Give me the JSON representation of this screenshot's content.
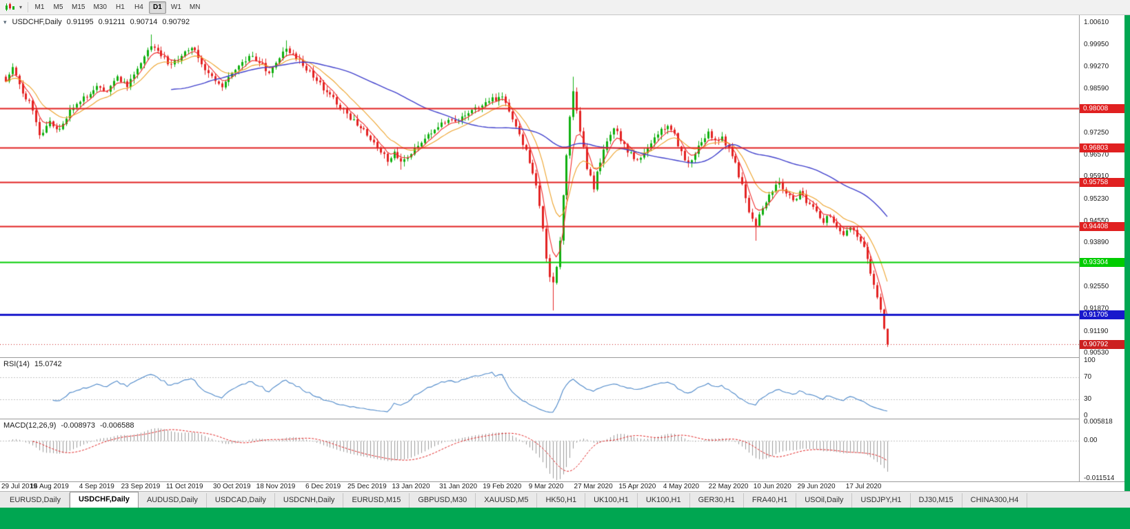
{
  "theme": {
    "workspace_bg": "#00a651",
    "toolbar_bg": "#f1f1f1",
    "pane_bg": "#ffffff"
  },
  "toolbar": {
    "timeframes": [
      "M1",
      "M5",
      "M15",
      "M30",
      "H1",
      "H4",
      "D1",
      "W1",
      "MN"
    ],
    "active_timeframe": "D1",
    "caret": "▾"
  },
  "main_chart": {
    "collapse_arrow": "▾",
    "title": "USDCHF,Daily",
    "ohlc": {
      "open": "0.91195",
      "high": "0.91211",
      "low": "0.90714",
      "close": "0.90792"
    }
  },
  "rsi_panel": {
    "label": "RSI(14)",
    "value": "15.0742"
  },
  "macd_panel": {
    "label": "MACD(12,26,9)",
    "value_main": "-0.008973",
    "value_signal": "-0.006588"
  },
  "chart_data": {
    "type": "candlestick",
    "symbol": "USDCHF",
    "timeframe": "Daily",
    "bar_count": 262,
    "y_axis": {
      "min": 0.904,
      "max": 1.0085,
      "ticks": [
        1.0061,
        0.9995,
        0.9927,
        0.9859,
        0.9791,
        0.9725,
        0.9657,
        0.9591,
        0.9523,
        0.9455,
        0.9389,
        0.9321,
        0.9255,
        0.9187,
        0.9119,
        0.9053
      ]
    },
    "x_labels": [
      "29 Jul 2019",
      "16 Aug 2019",
      "4 Sep 2019",
      "23 Sep 2019",
      "11 Oct 2019",
      "30 Oct 2019",
      "18 Nov 2019",
      "6 Dec 2019",
      "25 Dec 2019",
      "13 Jan 2020",
      "31 Jan 2020",
      "19 Feb 2020",
      "9 Mar 2020",
      "27 Mar 2020",
      "15 Apr 2020",
      "4 May 2020",
      "22 May 2020",
      "10 Jun 2020",
      "29 Jun 2020",
      "17 Jul 2020"
    ],
    "x_label_bars": [
      0,
      13,
      27,
      40,
      53,
      67,
      80,
      94,
      107,
      120,
      134,
      147,
      160,
      174,
      187,
      200,
      214,
      227,
      240,
      254
    ],
    "price_anchors": [
      [
        0,
        0.9882
      ],
      [
        2,
        0.9922
      ],
      [
        5,
        0.985
      ],
      [
        8,
        0.98
      ],
      [
        10,
        0.9712
      ],
      [
        13,
        0.9762
      ],
      [
        16,
        0.9735
      ],
      [
        19,
        0.9795
      ],
      [
        23,
        0.983
      ],
      [
        27,
        0.9872
      ],
      [
        30,
        0.9845
      ],
      [
        33,
        0.9895
      ],
      [
        36,
        0.987
      ],
      [
        40,
        0.994
      ],
      [
        43,
        0.9995
      ],
      [
        46,
        0.9962
      ],
      [
        49,
        0.9928
      ],
      [
        52,
        0.996
      ],
      [
        55,
        0.9988
      ],
      [
        58,
        0.9935
      ],
      [
        61,
        0.9898
      ],
      [
        64,
        0.9862
      ],
      [
        67,
        0.9902
      ],
      [
        70,
        0.9935
      ],
      [
        73,
        0.9962
      ],
      [
        76,
        0.9932
      ],
      [
        78,
        0.9902
      ],
      [
        80,
        0.9945
      ],
      [
        83,
        0.9985
      ],
      [
        86,
        0.9958
      ],
      [
        89,
        0.9922
      ],
      [
        92,
        0.9885
      ],
      [
        94,
        0.9862
      ],
      [
        97,
        0.983
      ],
      [
        100,
        0.9795
      ],
      [
        103,
        0.976
      ],
      [
        106,
        0.9732
      ],
      [
        109,
        0.97
      ],
      [
        111,
        0.9668
      ],
      [
        113,
        0.964
      ],
      [
        115,
        0.9668
      ],
      [
        117,
        0.963
      ],
      [
        120,
        0.9664
      ],
      [
        123,
        0.9698
      ],
      [
        126,
        0.9728
      ],
      [
        129,
        0.9755
      ],
      [
        132,
        0.977
      ],
      [
        134,
        0.9762
      ],
      [
        137,
        0.9782
      ],
      [
        140,
        0.9802
      ],
      [
        144,
        0.9828
      ],
      [
        147,
        0.9836
      ],
      [
        149,
        0.9788
      ],
      [
        151,
        0.9742
      ],
      [
        153,
        0.9694
      ],
      [
        155,
        0.964
      ],
      [
        157,
        0.956
      ],
      [
        158,
        0.95
      ],
      [
        159,
        0.943
      ],
      [
        160,
        0.934
      ],
      [
        161,
        0.928
      ],
      [
        162,
        0.9268
      ],
      [
        163,
        0.931
      ],
      [
        164,
        0.94
      ],
      [
        165,
        0.953
      ],
      [
        166,
        0.966
      ],
      [
        167,
        0.977
      ],
      [
        168,
        0.985
      ],
      [
        169,
        0.98
      ],
      [
        170,
        0.973
      ],
      [
        172,
        0.962
      ],
      [
        174,
        0.956
      ],
      [
        176,
        0.964
      ],
      [
        178,
        0.97
      ],
      [
        180,
        0.9742
      ],
      [
        182,
        0.9706
      ],
      [
        184,
        0.9668
      ],
      [
        187,
        0.964
      ],
      [
        190,
        0.9678
      ],
      [
        193,
        0.972
      ],
      [
        196,
        0.9752
      ],
      [
        198,
        0.9716
      ],
      [
        200,
        0.9668
      ],
      [
        202,
        0.963
      ],
      [
        204,
        0.9668
      ],
      [
        206,
        0.97
      ],
      [
        208,
        0.9728
      ],
      [
        210,
        0.97
      ],
      [
        212,
        0.9716
      ],
      [
        214,
        0.9674
      ],
      [
        216,
        0.963
      ],
      [
        218,
        0.9565
      ],
      [
        220,
        0.949
      ],
      [
        222,
        0.9445
      ],
      [
        224,
        0.95
      ],
      [
        227,
        0.955
      ],
      [
        229,
        0.9572
      ],
      [
        231,
        0.954
      ],
      [
        233,
        0.9515
      ],
      [
        235,
        0.9545
      ],
      [
        237,
        0.9518
      ],
      [
        240,
        0.9488
      ],
      [
        242,
        0.9458
      ],
      [
        244,
        0.9472
      ],
      [
        246,
        0.944
      ],
      [
        248,
        0.9418
      ],
      [
        250,
        0.944
      ],
      [
        252,
        0.9405
      ],
      [
        254,
        0.938
      ],
      [
        255,
        0.934
      ],
      [
        256,
        0.93
      ],
      [
        257,
        0.9262
      ],
      [
        258,
        0.9224
      ],
      [
        259,
        0.9185
      ],
      [
        260,
        0.912
      ],
      [
        261,
        0.9079
      ]
    ],
    "wick_overrides": [
      {
        "bar": 2,
        "high": 0.9938
      },
      {
        "bar": 43,
        "high": 1.0026
      },
      {
        "bar": 83,
        "high": 1.0008
      },
      {
        "bar": 117,
        "low": 0.9613
      },
      {
        "bar": 147,
        "high": 0.9849
      },
      {
        "bar": 162,
        "low": 0.9183
      },
      {
        "bar": 168,
        "high": 0.9897
      },
      {
        "bar": 222,
        "low": 0.9396
      },
      {
        "bar": 261,
        "low": 0.90714,
        "high": 0.91211
      }
    ],
    "horizontal_lines": [
      {
        "price": 0.98008,
        "label": "0.98008",
        "color": "#e02020",
        "width": 2
      },
      {
        "price": 0.96803,
        "label": "0.96803",
        "color": "#e02020",
        "width": 2
      },
      {
        "price": 0.95758,
        "label": "0.95758",
        "color": "#e02020",
        "width": 2
      },
      {
        "price": 0.94408,
        "label": "0.94408",
        "color": "#e02020",
        "width": 2
      },
      {
        "price": 0.93304,
        "label": "0.93304",
        "color": "#00cc00",
        "width": 2
      },
      {
        "price": 0.91705,
        "label": "0.91705",
        "color": "#1818cc",
        "width": 3
      }
    ],
    "current_price": {
      "value": 0.90792,
      "label": "0.90792",
      "tag_color": "#cc2020"
    },
    "candle_up_color": "#0faf0f",
    "candle_down_color": "#e32222",
    "moving_averages": [
      {
        "name": "fast",
        "period": 5,
        "method": "ema",
        "color": "#f02828"
      },
      {
        "name": "medium",
        "period": 13,
        "method": "ema",
        "color": "#eda128"
      },
      {
        "name": "slow",
        "period": 50,
        "method": "sma",
        "color": "#4040cc"
      }
    ],
    "rsi": {
      "period": 14,
      "levels": [
        100,
        70,
        30,
        0
      ],
      "line_color": "#4a86c8",
      "last_value": 15.0742
    },
    "macd": {
      "fast": 12,
      "slow": 26,
      "signal": 9,
      "axis_labels": [
        "0.005818",
        "0.00",
        "-0.011514"
      ],
      "range": {
        "min": -0.0118,
        "max": 0.006
      },
      "histogram_color": "#9a9a9a",
      "signal_color": "#e02020",
      "last_main": -0.008973,
      "last_signal": -0.006588
    }
  },
  "tabs": [
    "EURUSD,Daily",
    "USDCHF,Daily",
    "AUDUSD,Daily",
    "USDCAD,Daily",
    "USDCNH,Daily",
    "EURUSD,M15",
    "GBPUSD,M30",
    "XAUUSD,M5",
    "HK50,H1",
    "UK100,H1",
    "UK100,H1",
    "GER30,H1",
    "FRA40,H1",
    "USOil,Daily",
    "USDJPY,H1",
    "DJ30,M15",
    "CHINA300,H4"
  ],
  "active_tab": "USDCHF,Daily"
}
